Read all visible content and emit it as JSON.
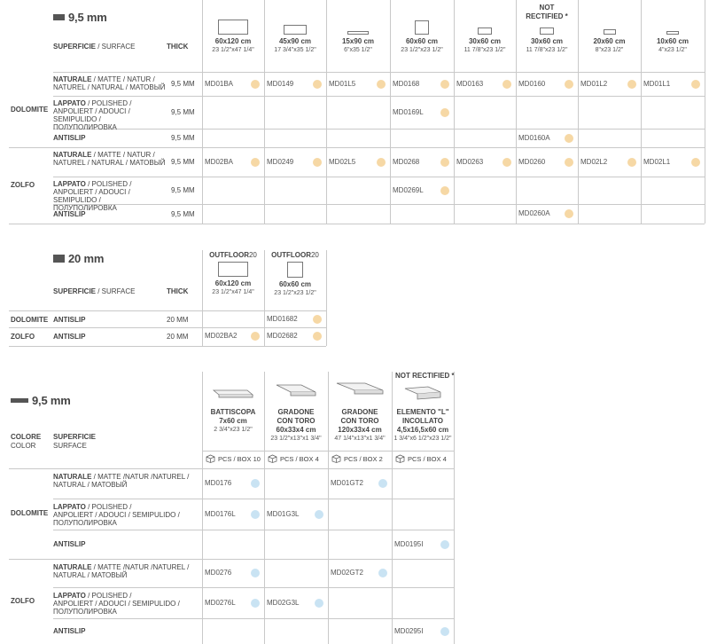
{
  "sec1": {
    "title": "9,5 mm",
    "surface_hdr_bold": "SUPERFICIE",
    "surface_hdr_lt": " / SURFACE",
    "thick_hdr": "THICK",
    "not_rectified": "NOT\nRECTIFIED *",
    "sizes": [
      {
        "size": "60x120 cm",
        "inch": "23 1/2\"x47 1/4\""
      },
      {
        "size": "45x90 cm",
        "inch": "17 3/4\"x35 1/2\""
      },
      {
        "size": "15x90 cm",
        "inch": "6\"x35 1/2\""
      },
      {
        "size": "60x60 cm",
        "inch": "23 1/2\"x23 1/2\""
      },
      {
        "size": "30x60 cm",
        "inch": "11 7/8\"x23 1/2\""
      },
      {
        "size": "30x60 cm",
        "inch": "11 7/8\"x23 1/2\""
      },
      {
        "size": "20x60 cm",
        "inch": "8\"x23 1/2\""
      },
      {
        "size": "10x60 cm",
        "inch": "4\"x23 1/2\""
      }
    ],
    "groups": [
      {
        "name": "DOLOMITE",
        "rows": [
          {
            "l1b": "NATURALE",
            "l1": " / MATTE / NATUR /",
            "l2": "NATUREL / NATURAL / МАТОВЫЙ",
            "l3": "",
            "mm": "9,5 MM",
            "codes": [
              "MD01BA",
              "MD0149",
              "MD01L5",
              "MD0168",
              "MD0163",
              "MD0160",
              "MD01L2",
              "MD01L1"
            ]
          },
          {
            "l1b": "LAPPATO",
            "l1": " / POLISHED /",
            "l2": "ANPOLIERT / ADOUCI / SEMIPULIDO /",
            "l3": "ПОЛУПОЛИРОВКА",
            "mm": "9,5 MM",
            "codes": [
              "",
              "",
              "",
              "MD0169L",
              "",
              "",
              "",
              ""
            ]
          },
          {
            "l1b": "ANTISLIP",
            "l1": "",
            "l2": "",
            "l3": "",
            "mm": "9,5 MM",
            "codes": [
              "",
              "",
              "",
              "",
              "",
              "MD0160A",
              "",
              ""
            ]
          }
        ]
      },
      {
        "name": "ZOLFO",
        "rows": [
          {
            "l1b": "NATURALE",
            "l1": " / MATTE / NATUR /",
            "l2": "NATUREL / NATURAL / МАТОВЫЙ",
            "l3": "",
            "mm": "9,5 MM",
            "codes": [
              "MD02BA",
              "MD0249",
              "MD02L5",
              "MD0268",
              "MD0263",
              "MD0260",
              "MD02L2",
              "MD02L1"
            ]
          },
          {
            "l1b": "LAPPATO",
            "l1": " / POLISHED /",
            "l2": "ANPOLIERT / ADOUCI / SEMIPULIDO /",
            "l3": "ПОЛУПОЛИРОВКА",
            "mm": "9,5 MM",
            "codes": [
              "",
              "",
              "",
              "MD0269L",
              "",
              "",
              "",
              ""
            ]
          },
          {
            "l1b": "ANTISLIP",
            "l1": "",
            "l2": "",
            "l3": "",
            "mm": "9,5 MM",
            "codes": [
              "",
              "",
              "",
              "",
              "",
              "MD0260A",
              "",
              ""
            ]
          }
        ]
      }
    ]
  },
  "sec2": {
    "title": "20 mm",
    "surface_hdr_bold": "SUPERFICIE",
    "surface_hdr_lt": " / SURFACE",
    "thick_hdr": "THICK",
    "sizes": [
      {
        "brand": "OUTFLOOR",
        "brand_sfx": "20",
        "size": "60x120 cm",
        "inch": "23 1/2\"x47 1/4\""
      },
      {
        "brand": "OUTFLOOR",
        "brand_sfx": "20",
        "size": "60x60 cm",
        "inch": "23 1/2\"x23 1/2\""
      }
    ],
    "rows": [
      {
        "group": "DOLOMITE",
        "surface": "ANTISLIP",
        "mm": "20 MM",
        "codes": [
          "",
          "MD01682"
        ]
      },
      {
        "group": "ZOLFO",
        "surface": "ANTISLIP",
        "mm": "20 MM",
        "codes": [
          "MD02BA2",
          "MD02682"
        ]
      }
    ]
  },
  "sec3": {
    "title": "9,5 mm",
    "colore_hdr": "COLORE",
    "color_hdr": "COLOR",
    "superficie_hdr": "SUPERFICIE",
    "surface_hdr": "SURFACE",
    "not_rectified": "NOT RECTIFIED *",
    "pieces": [
      {
        "name1": "BATTISCOPA",
        "name2": "7x60 cm",
        "name3": "",
        "inch": "2 3/4\"x23 1/2\"",
        "pcs": "PCS / BOX 10"
      },
      {
        "name1": "GRADONE",
        "name2": "CON TORO",
        "name3": "60x33x4 cm",
        "inch": "23 1/2\"x13\"x1 3/4\"",
        "pcs": "PCS / BOX 4"
      },
      {
        "name1": "GRADONE",
        "name2": "CON TORO",
        "name3": "120x33x4 cm",
        "inch": "47 1/4\"x13\"x1 3/4\"",
        "pcs": "PCS / BOX 2"
      },
      {
        "name1": "ELEMENTO \"L\"",
        "name2": "INCOLLATO",
        "name3": "4,5x16,5x60 cm",
        "inch": "1 3/4\"x6 1/2\"x23 1/2\"",
        "pcs": "PCS / BOX 4"
      }
    ],
    "groups": [
      {
        "name": "DOLOMITE",
        "rows": [
          {
            "l1b": "NATURALE",
            "l1": " / MATTE /NATUR /NATUREL /",
            "l2": "NATURAL / МАТОВЫЙ",
            "l3": "",
            "codes": [
              "MD0176",
              "",
              "MD01GT2",
              ""
            ]
          },
          {
            "l1b": "LAPPATO",
            "l1": " / POLISHED /",
            "l2": "ANPOLIERT / ADOUCI / SEMIPULIDO /",
            "l3": "ПОЛУПОЛИРОВКА",
            "codes": [
              "MD0176L",
              "MD01G3L",
              "",
              ""
            ]
          },
          {
            "l1b": "ANTISLIP",
            "l1": "",
            "l2": "",
            "l3": "",
            "codes": [
              "",
              "",
              "",
              "MD0195I"
            ]
          }
        ]
      },
      {
        "name": "ZOLFO",
        "rows": [
          {
            "l1b": "NATURALE",
            "l1": " / MATTE /NATUR /NATUREL /",
            "l2": "NATURAL / МАТОВЫЙ",
            "l3": "",
            "codes": [
              "MD0276",
              "",
              "MD02GT2",
              ""
            ]
          },
          {
            "l1b": "LAPPATO",
            "l1": " / POLISHED /",
            "l2": "ANPOLIERT / ADOUCI / SEMIPULIDO /",
            "l3": "ПОЛУПОЛИРОВКА",
            "codes": [
              "MD0276L",
              "MD02G3L",
              "",
              ""
            ]
          },
          {
            "l1b": "ANTISLIP",
            "l1": "",
            "l2": "",
            "l3": "",
            "codes": [
              "",
              "",
              "",
              "MD0295I"
            ]
          }
        ]
      }
    ]
  },
  "colors": {
    "dot_orange": "#f6d8a5",
    "dot_blue": "#c9e3f3"
  }
}
